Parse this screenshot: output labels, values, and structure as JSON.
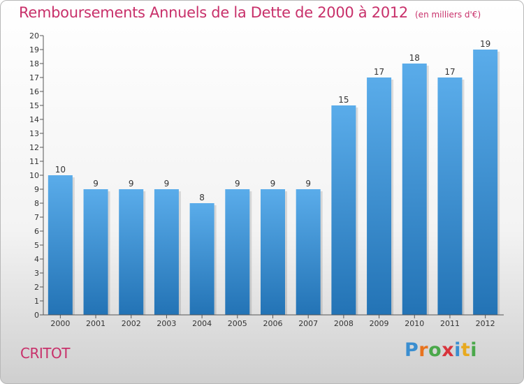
{
  "header": {
    "title": "Remboursements Annuels de la Dette de 2000 à 2012",
    "unit": "(en milliers d'€)"
  },
  "footer": {
    "town": "CRITOT",
    "brand": "Proxiti"
  },
  "colors": {
    "title": "#c8306a",
    "bar_top": "#5aacea",
    "bar_bottom": "#2373b5",
    "axis": "#555555"
  },
  "chart_data": {
    "type": "bar",
    "title": "Remboursements Annuels de la Dette de 2000 à 2012",
    "unit": "(en milliers d'€)",
    "categories": [
      "2000",
      "2001",
      "2002",
      "2003",
      "2004",
      "2005",
      "2006",
      "2007",
      "2008",
      "2009",
      "2010",
      "2011",
      "2012"
    ],
    "values": [
      10,
      9,
      9,
      9,
      8,
      9,
      9,
      9,
      15,
      17,
      18,
      17,
      19
    ],
    "data_labels": [
      "10",
      "9",
      "9",
      "9",
      "8",
      "9",
      "9",
      "9",
      "15",
      "17",
      "18",
      "17",
      "19"
    ],
    "ylim": [
      0,
      20
    ],
    "yticks": [
      0,
      1,
      2,
      3,
      4,
      5,
      6,
      7,
      8,
      9,
      10,
      11,
      12,
      13,
      14,
      15,
      16,
      17,
      18,
      19,
      20
    ],
    "grid": false,
    "legend": "none"
  }
}
